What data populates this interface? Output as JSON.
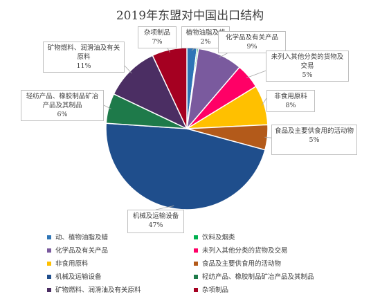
{
  "chart_data": {
    "type": "pie",
    "title": "2019年东盟对中国出口结构",
    "slices": [
      {
        "name": "动、植物油脂及蜡",
        "value": 2,
        "label": "植物油脂及蜡",
        "color": "#2e75b6"
      },
      {
        "name": "饮料及烟类",
        "value": 0.3,
        "label": "",
        "color": "#00b050"
      },
      {
        "name": "化学品及有关产品",
        "value": 9,
        "label": "化学品及有关产品",
        "color": "#7a5a9e"
      },
      {
        "name": "未列入其他分类的货物及交易",
        "value": 5,
        "label": "未列入其他分类的货物及交易",
        "color": "#ff0066"
      },
      {
        "name": "非食用原料",
        "value": 8,
        "label": "非食用原料",
        "color": "#ffc000"
      },
      {
        "name": "食品及主要供食用的活动物",
        "value": 5,
        "label": "食品及主要供食用的活动物",
        "color": "#b35a1a"
      },
      {
        "name": "机械及运输设备",
        "value": 47,
        "label": "机械及运输设备",
        "color": "#1f4e8c"
      },
      {
        "name": "轻纺产品、橡胶制品矿冶产品及其制品",
        "value": 6,
        "label": "轻纺产品、橡胶制品矿冶产品及其制品",
        "color": "#1e7a4a"
      },
      {
        "name": "矿物燃料、润滑油及有关原料",
        "value": 11,
        "label": "矿物燃料、润滑油及有关原料",
        "color": "#4b2e63"
      },
      {
        "name": "杂项制品",
        "value": 7,
        "label": "杂项制品",
        "color": "#a50021"
      }
    ],
    "percent_labels": [
      "2%",
      "",
      "9%",
      "5%",
      "8%",
      "5%",
      "47%",
      "6%",
      "11%",
      "7%"
    ],
    "legend_position": "bottom"
  }
}
